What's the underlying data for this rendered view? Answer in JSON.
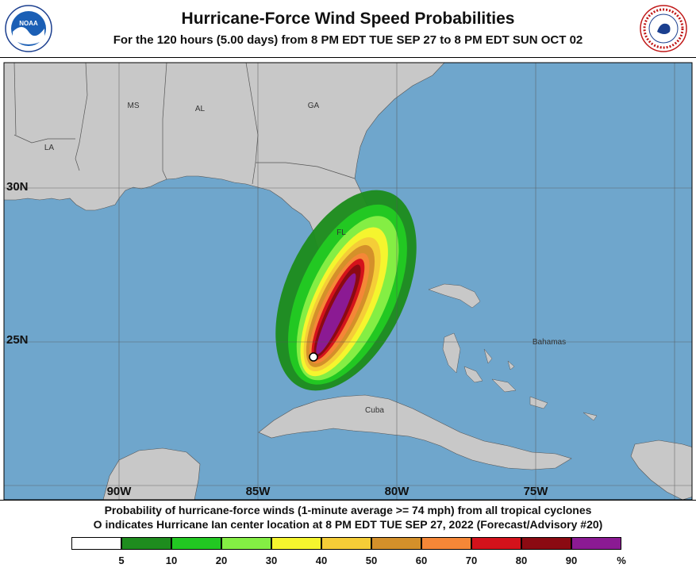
{
  "header": {
    "title": "Hurricane-Force Wind Speed Probabilities",
    "subtitle": "For the 120 hours (5.00 days) from 8 PM EDT TUE SEP 27 to 8 PM EDT SUN OCT 02",
    "noaa_logo_text": "NOAA",
    "nws_logo_text": "NATIONAL WEATHER SERVICE"
  },
  "map": {
    "ocean_color": "#6fa6cc",
    "land_color": "#c8c8c8",
    "lat_labels": [
      "30N",
      "25N"
    ],
    "lon_labels": [
      "90W",
      "85W",
      "80W",
      "75W"
    ],
    "region_labels": [
      "MS",
      "AL",
      "GA",
      "LA",
      "FL",
      "Bahamas",
      "Cuba"
    ],
    "storm_marker": "Hurricane Ian center"
  },
  "footer": {
    "line1": "Probability of hurricane-force winds (1-minute average >= 74 mph) from all tropical cyclones",
    "line2": "O  indicates Hurricane Ian center location at 8 PM EDT TUE SEP 27, 2022 (Forecast/Advisory #20)"
  },
  "legend": {
    "colors": [
      "#ffffff",
      "#1e8c1e",
      "#22c822",
      "#84ee44",
      "#f5f52e",
      "#f5cd37",
      "#d4902a",
      "#f58737",
      "#d4121b",
      "#8b0a12",
      "#8b1a93"
    ],
    "labels": [
      "5",
      "10",
      "20",
      "30",
      "40",
      "50",
      "60",
      "70",
      "80",
      "90",
      "%"
    ]
  }
}
